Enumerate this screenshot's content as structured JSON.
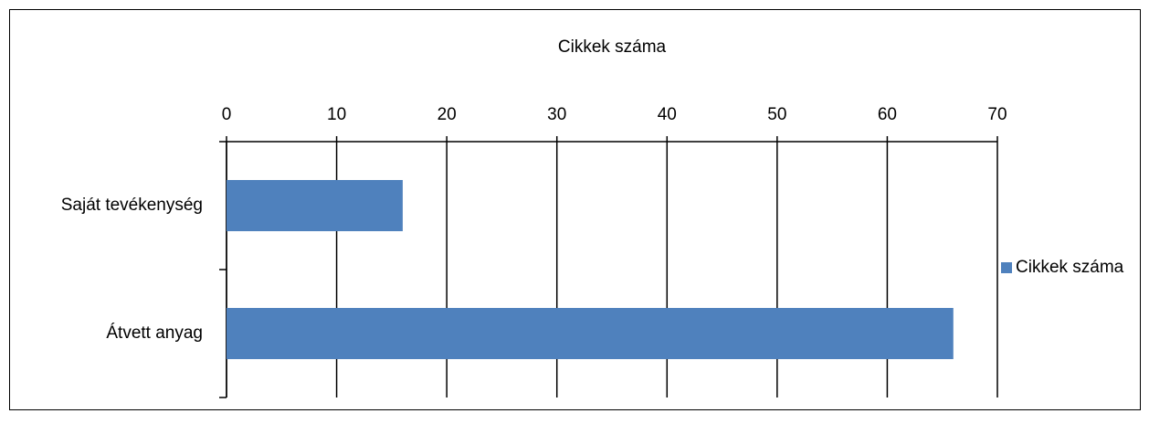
{
  "chart_data": {
    "type": "bar",
    "orientation": "horizontal",
    "title": "Cikkek száma",
    "categories": [
      "Saját tevékenység",
      "Átvett anyag"
    ],
    "series": [
      {
        "name": "Cikkek száma",
        "color": "#4f81bd",
        "values": [
          16,
          66
        ]
      }
    ],
    "xlim": [
      0,
      70
    ],
    "xticks": [
      0,
      10,
      20,
      30,
      40,
      50,
      60,
      70
    ],
    "grid": true,
    "legend": "right"
  }
}
